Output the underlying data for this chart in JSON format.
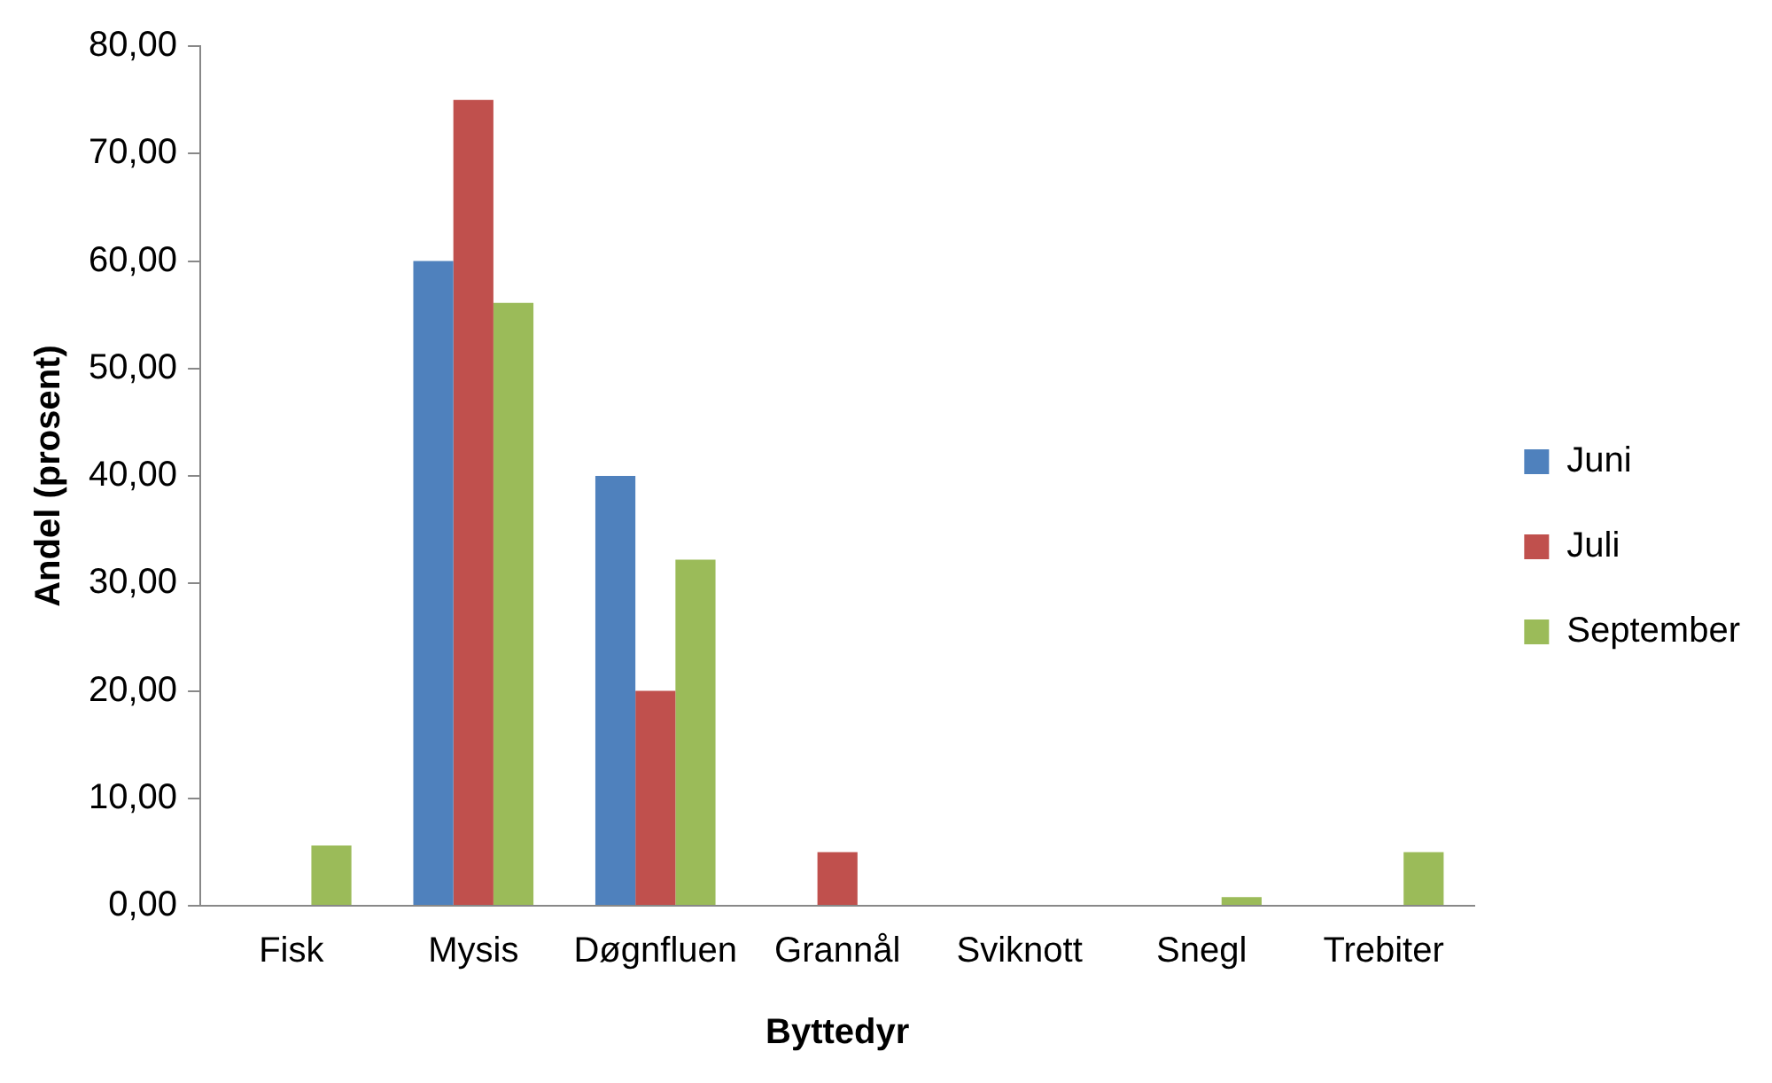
{
  "chart_data": {
    "type": "bar",
    "xlabel": "Byttedyr",
    "ylabel": "Andel (prosent)",
    "categories": [
      "Fisk",
      "Mysis",
      "Døgnfluen",
      "Grannål",
      "Sviknott",
      "Snegl",
      "Trebiter"
    ],
    "series": [
      {
        "name": "Juni",
        "color": "#4f81bd",
        "values": [
          0,
          60,
          40,
          0,
          0,
          0,
          0
        ]
      },
      {
        "name": "Juli",
        "color": "#c0504d",
        "values": [
          0,
          75,
          20,
          5,
          0,
          0,
          0
        ]
      },
      {
        "name": "September",
        "color": "#9bbb59",
        "values": [
          5.6,
          56.1,
          32.2,
          0,
          null,
          0.8,
          5
        ]
      }
    ],
    "ylim": [
      0,
      80
    ],
    "yticks": [
      {
        "value": 0,
        "label": "0,00"
      },
      {
        "value": 10,
        "label": "10,00"
      },
      {
        "value": 20,
        "label": "20,00"
      },
      {
        "value": 30,
        "label": "30,00"
      },
      {
        "value": 40,
        "label": "40,00"
      },
      {
        "value": 50,
        "label": "50,00"
      },
      {
        "value": 60,
        "label": "60,00"
      },
      {
        "value": 70,
        "label": "70,00"
      },
      {
        "value": 80,
        "label": "80,00"
      }
    ],
    "grid": false,
    "legend": "right"
  }
}
